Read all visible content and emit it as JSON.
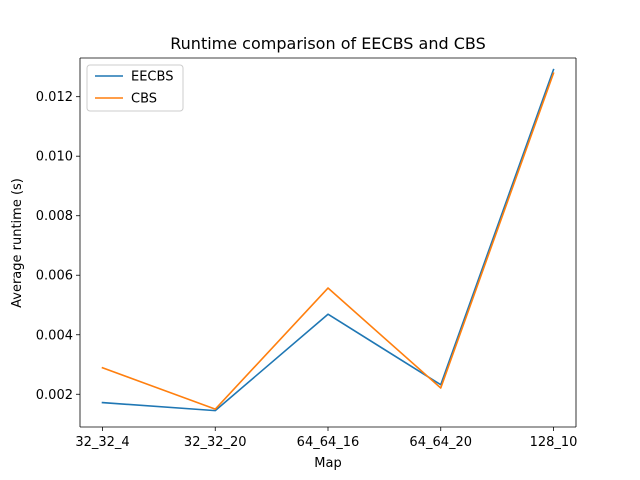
{
  "chart_data": {
    "type": "line",
    "title": "Runtime comparison of EECBS and CBS",
    "xlabel": "Map",
    "ylabel": "Average runtime (s)",
    "categories": [
      "32_32_4",
      "32_32_20",
      "64_64_16",
      "64_64_20",
      "128_10"
    ],
    "series": [
      {
        "name": "EECBS",
        "color": "#1f77b4",
        "values": [
          0.00172,
          0.00145,
          0.00469,
          0.00232,
          0.01291
        ]
      },
      {
        "name": "CBS",
        "color": "#ff7f0e",
        "values": [
          0.00289,
          0.0015,
          0.00557,
          0.00221,
          0.01279
        ]
      }
    ],
    "ylim": [
      0.0009,
      0.0133
    ],
    "yticks": [
      0.002,
      0.004,
      0.006,
      0.008,
      0.01,
      0.012
    ],
    "ytick_labels": [
      "0.002",
      "0.004",
      "0.006",
      "0.008",
      "0.010",
      "0.012"
    ],
    "grid": false,
    "legend_position": "upper-left"
  }
}
